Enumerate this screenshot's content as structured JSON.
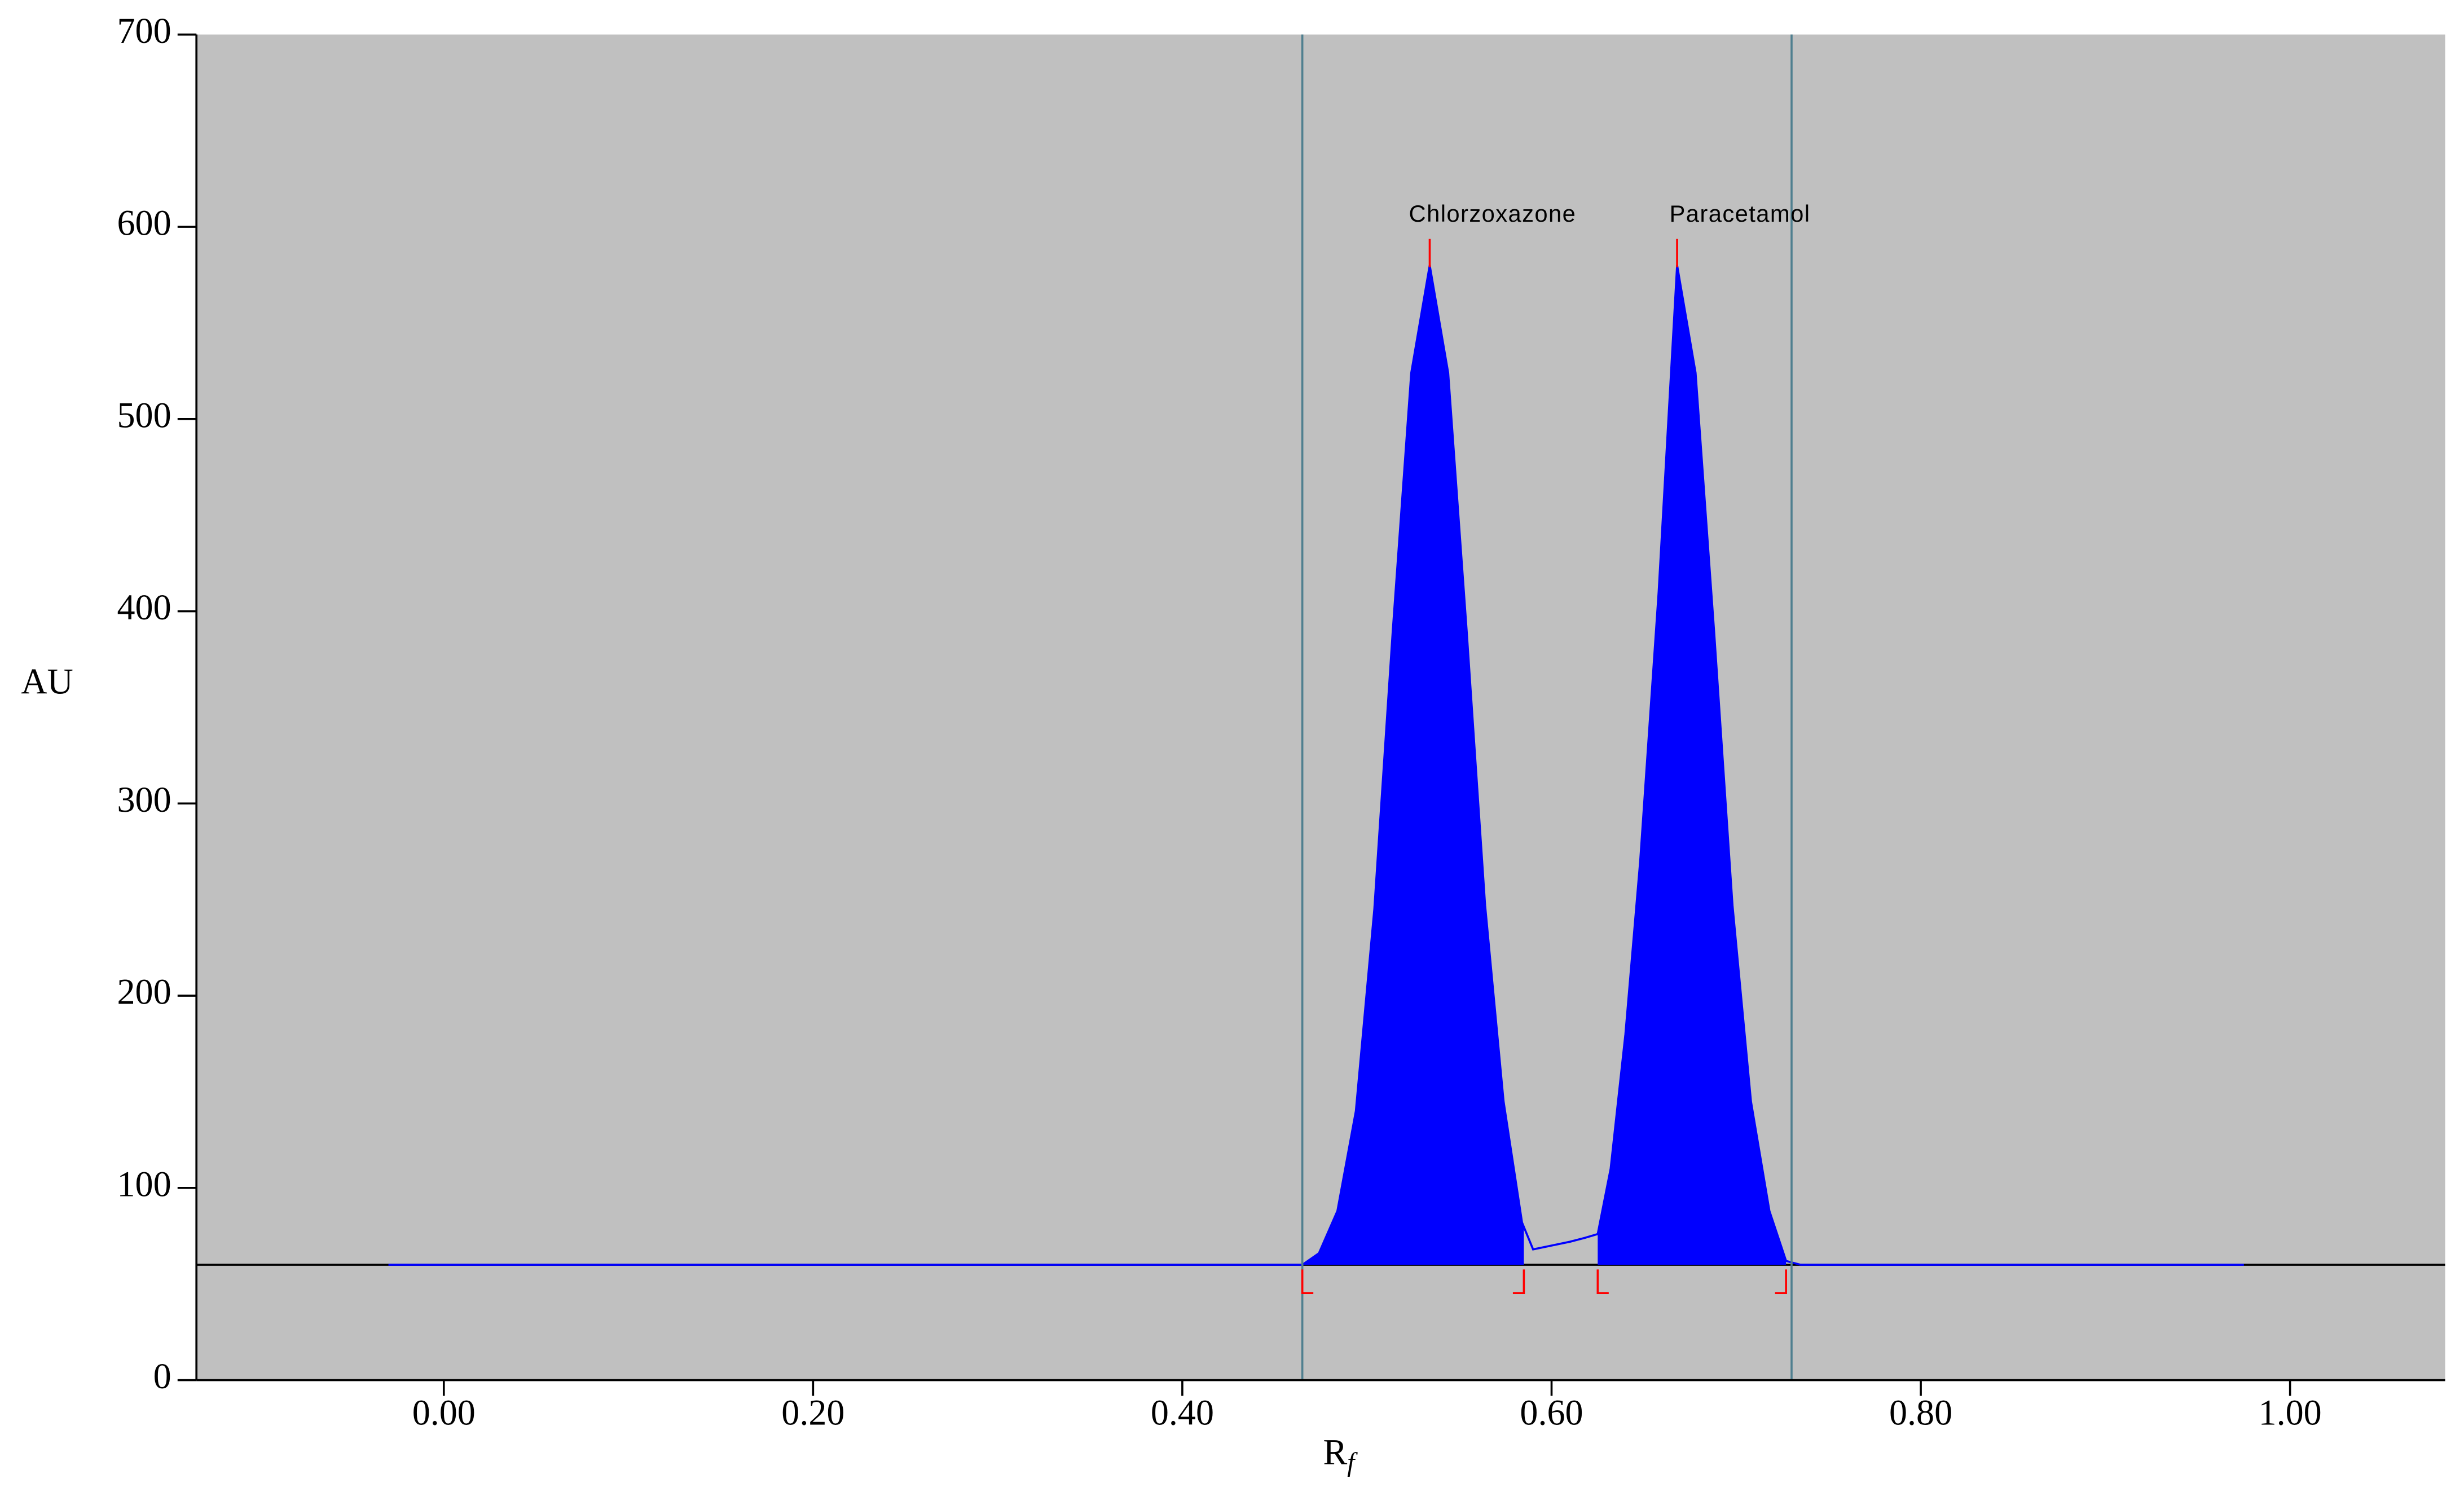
{
  "chart_data": {
    "type": "line",
    "y_label": "AU",
    "x_label": "R",
    "x_label_subscript": "f",
    "x": [
      -0.03,
      0.465,
      0.474,
      0.484,
      0.494,
      0.504,
      0.514,
      0.524,
      0.534,
      0.544,
      0.554,
      0.564,
      0.574,
      0.584,
      0.59,
      0.6,
      0.61,
      0.618,
      0.625,
      0.632,
      0.64,
      0.648,
      0.658,
      0.668,
      0.678,
      0.688,
      0.698,
      0.708,
      0.718,
      0.727,
      0.735,
      0.975
    ],
    "series": [
      {
        "color": "#0000ff",
        "values": [
          60,
          60,
          66,
          88,
          140,
          245,
          390,
          524,
          580,
          524,
          390,
          247,
          145,
          82,
          68,
          70,
          72,
          74,
          76,
          110,
          180,
          270,
          410,
          580,
          524,
          390,
          247,
          145,
          88,
          62,
          60,
          60
        ]
      }
    ],
    "baseline": 60,
    "baseline_color": "#000000",
    "markers": [
      0.465,
      0.73
    ],
    "marker_color": "#4f7f8f",
    "peak_color": "#ff0000",
    "peaks": [
      {
        "name": "Chlorzoxazone",
        "rf": 0.534,
        "start": 0.465,
        "end": 0.585
      },
      {
        "name": "Paracetamol",
        "rf": 0.668,
        "start": 0.625,
        "end": 0.727
      }
    ],
    "background": "#c0c0c0",
    "xlim": [
      -0.134,
      1.084
    ],
    "ylim": [
      0,
      700
    ],
    "xticks": [
      {
        "value": 0,
        "label": "0.00"
      },
      {
        "value": 0.2,
        "label": "0.20"
      },
      {
        "value": 0.4,
        "label": "0.40"
      },
      {
        "value": 0.6,
        "label": "0.60"
      },
      {
        "value": 0.8,
        "label": "0.80"
      },
      {
        "value": 1,
        "label": "1.00"
      }
    ],
    "yticks": [
      0,
      100,
      200,
      300,
      400,
      500,
      600,
      700
    ]
  }
}
